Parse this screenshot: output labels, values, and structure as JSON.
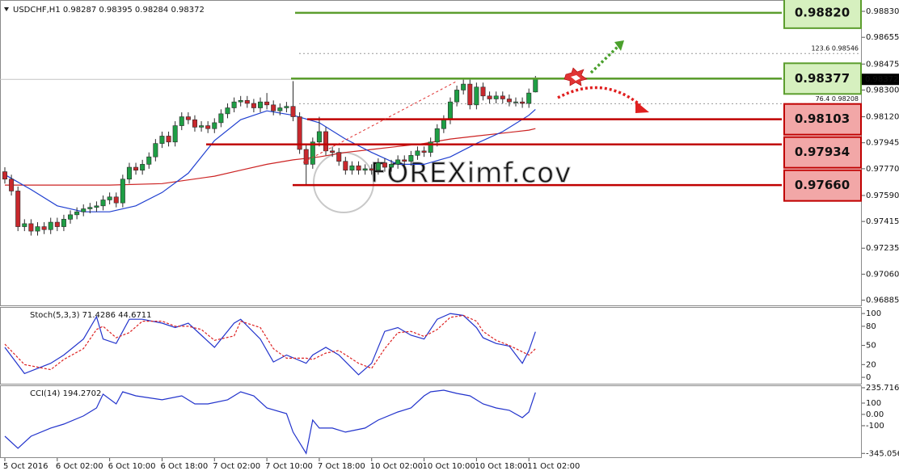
{
  "chart_data": [
    {
      "type": "candlestick",
      "title": "USDCHF,H1  0.98287 0.98395 0.98284 0.98372",
      "up_color": "#1e9e45",
      "down_color": "#c8282d",
      "xlim": [
        -0.74,
        130.7
      ],
      "ylim": [
        0.9685,
        0.9889
      ],
      "xticks": [
        {
          "value": 0,
          "label": "5 Oct 2016"
        },
        {
          "value": 8,
          "label": "6 Oct 02:00"
        },
        {
          "value": 16,
          "label": "6 Oct 10:00"
        },
        {
          "value": 24,
          "label": "6 Oct 18:00"
        },
        {
          "value": 32,
          "label": "7 Oct 02:00"
        },
        {
          "value": 40,
          "label": "7 Oct 10:00"
        },
        {
          "value": 48,
          "label": "7 Oct 18:00"
        },
        {
          "value": 56,
          "label": "10 Oct 02:00"
        },
        {
          "value": 64,
          "label": "10 Oct 10:00"
        },
        {
          "value": 72,
          "label": "10 Oct 18:00"
        },
        {
          "value": 80,
          "label": "11 Oct 02:00"
        }
      ],
      "yticks": [
        {
          "value": 0.9883,
          "label": "0.98830"
        },
        {
          "value": 0.98655,
          "label": "0.98655"
        },
        {
          "value": 0.98475,
          "label": "0.98475"
        },
        {
          "value": 0.983,
          "label": "0.98300"
        },
        {
          "value": 0.9812,
          "label": "0.98120"
        },
        {
          "value": 0.97945,
          "label": "0.97945"
        },
        {
          "value": 0.9777,
          "label": "0.97770"
        },
        {
          "value": 0.9759,
          "label": "0.97590"
        },
        {
          "value": 0.97415,
          "label": "0.97415"
        },
        {
          "value": 0.97235,
          "label": "0.97235"
        },
        {
          "value": 0.9706,
          "label": "0.97060"
        },
        {
          "value": 0.96885,
          "label": "0.96885"
        }
      ],
      "candles": [
        [
          0.9775,
          0.9778,
          0.9767,
          0.977
        ],
        [
          0.977,
          0.9773,
          0.9759,
          0.9762
        ],
        [
          0.9762,
          0.9765,
          0.9735,
          0.9738
        ],
        [
          0.9738,
          0.9743,
          0.9735,
          0.974
        ],
        [
          0.974,
          0.9743,
          0.9732,
          0.9735
        ],
        [
          0.9735,
          0.9741,
          0.9732,
          0.9738
        ],
        [
          0.9738,
          0.9741,
          0.9733,
          0.9736
        ],
        [
          0.9736,
          0.9744,
          0.9733,
          0.9741
        ],
        [
          0.9741,
          0.9744,
          0.9735,
          0.9738
        ],
        [
          0.9738,
          0.9746,
          0.9735,
          0.9743
        ],
        [
          0.9743,
          0.9749,
          0.974,
          0.9746
        ],
        [
          0.9746,
          0.9751,
          0.9743,
          0.9748
        ],
        [
          0.9748,
          0.9753,
          0.9745,
          0.975
        ],
        [
          0.975,
          0.9754,
          0.9747,
          0.9751
        ],
        [
          0.9751,
          0.9755,
          0.9748,
          0.9752
        ],
        [
          0.9752,
          0.9759,
          0.9749,
          0.9756
        ],
        [
          0.9756,
          0.9761,
          0.9753,
          0.9758
        ],
        [
          0.9758,
          0.9761,
          0.9751,
          0.9754
        ],
        [
          0.9754,
          0.9773,
          0.9751,
          0.977
        ],
        [
          0.977,
          0.9781,
          0.9767,
          0.9778
        ],
        [
          0.9778,
          0.9781,
          0.9773,
          0.9776
        ],
        [
          0.9776,
          0.9783,
          0.9773,
          0.978
        ],
        [
          0.978,
          0.9788,
          0.9777,
          0.9785
        ],
        [
          0.9785,
          0.9797,
          0.9782,
          0.9794
        ],
        [
          0.9794,
          0.9802,
          0.9791,
          0.9799
        ],
        [
          0.9799,
          0.9802,
          0.9792,
          0.9795
        ],
        [
          0.9795,
          0.9809,
          0.9792,
          0.9806
        ],
        [
          0.9806,
          0.9815,
          0.9803,
          0.9812
        ],
        [
          0.9812,
          0.9815,
          0.9807,
          0.981
        ],
        [
          0.981,
          0.9813,
          0.9802,
          0.9805
        ],
        [
          0.9805,
          0.9809,
          0.9802,
          0.9806
        ],
        [
          0.9806,
          0.9809,
          0.9801,
          0.9804
        ],
        [
          0.9804,
          0.9811,
          0.9801,
          0.9808
        ],
        [
          0.9808,
          0.9817,
          0.9805,
          0.9814
        ],
        [
          0.9814,
          0.9821,
          0.9811,
          0.9818
        ],
        [
          0.9818,
          0.9825,
          0.9815,
          0.9822
        ],
        [
          0.9822,
          0.9826,
          0.9819,
          0.9823
        ],
        [
          0.9823,
          0.9826,
          0.9818,
          0.9821
        ],
        [
          0.9821,
          0.9824,
          0.9815,
          0.9818
        ],
        [
          0.9818,
          0.9825,
          0.9815,
          0.9822
        ],
        [
          0.9822,
          0.9828,
          0.9817,
          0.982
        ],
        [
          0.982,
          0.9823,
          0.9813,
          0.9816
        ],
        [
          0.9816,
          0.9821,
          0.9813,
          0.9818
        ],
        [
          0.9818,
          0.9822,
          0.9815,
          0.9819
        ],
        [
          0.9819,
          0.9836,
          0.9809,
          0.9812
        ],
        [
          0.9812,
          0.9815,
          0.9787,
          0.979
        ],
        [
          0.979,
          0.9793,
          0.9766,
          0.978
        ],
        [
          0.978,
          0.9798,
          0.9777,
          0.9795
        ],
        [
          0.9795,
          0.9812,
          0.9792,
          0.9802
        ],
        [
          0.9802,
          0.9805,
          0.9786,
          0.9789
        ],
        [
          0.9789,
          0.9792,
          0.9785,
          0.9788
        ],
        [
          0.9788,
          0.9791,
          0.9779,
          0.9782
        ],
        [
          0.9782,
          0.9785,
          0.9773,
          0.9776
        ],
        [
          0.9776,
          0.9782,
          0.9773,
          0.9779
        ],
        [
          0.9779,
          0.9782,
          0.9773,
          0.9776
        ],
        [
          0.9776,
          0.978,
          0.9773,
          0.9777
        ],
        [
          0.9777,
          0.978,
          0.9773,
          0.9776
        ],
        [
          0.9776,
          0.9784,
          0.9773,
          0.9781
        ],
        [
          0.9781,
          0.9784,
          0.9775,
          0.9778
        ],
        [
          0.9778,
          0.9783,
          0.9775,
          0.978
        ],
        [
          0.978,
          0.9786,
          0.9777,
          0.9783
        ],
        [
          0.9783,
          0.9786,
          0.9779,
          0.9782
        ],
        [
          0.9782,
          0.9789,
          0.9779,
          0.9786
        ],
        [
          0.9786,
          0.9792,
          0.9783,
          0.9789
        ],
        [
          0.9789,
          0.9792,
          0.9785,
          0.9788
        ],
        [
          0.9788,
          0.9798,
          0.9785,
          0.9795
        ],
        [
          0.9795,
          0.9807,
          0.9792,
          0.9804
        ],
        [
          0.9804,
          0.9813,
          0.9801,
          0.981
        ],
        [
          0.981,
          0.9825,
          0.9807,
          0.9822
        ],
        [
          0.9822,
          0.9833,
          0.9819,
          0.983
        ],
        [
          0.983,
          0.9837,
          0.9827,
          0.9834
        ],
        [
          0.9834,
          0.9837,
          0.9817,
          0.982
        ],
        [
          0.982,
          0.9835,
          0.9817,
          0.9832
        ],
        [
          0.9832,
          0.9835,
          0.9823,
          0.9826
        ],
        [
          0.9826,
          0.9829,
          0.9821,
          0.9824
        ],
        [
          0.9824,
          0.9829,
          0.9821,
          0.9826
        ],
        [
          0.9826,
          0.9829,
          0.9821,
          0.9824
        ],
        [
          0.9824,
          0.9827,
          0.9819,
          0.9822
        ],
        [
          0.9822,
          0.9825,
          0.9819,
          0.9822
        ],
        [
          0.9822,
          0.9825,
          0.9818,
          0.9821
        ],
        [
          0.9821,
          0.9831,
          0.9818,
          0.9828
        ],
        [
          0.98287,
          0.98395,
          0.98284,
          0.98372
        ]
      ],
      "series": [
        {
          "color": "#cc2222",
          "x": [
            0,
            8,
            16,
            24,
            32,
            36,
            40,
            44,
            48,
            52,
            56,
            60,
            64,
            68,
            72,
            76,
            80,
            81
          ],
          "values": [
            0.9766,
            0.9766,
            0.9766,
            0.9767,
            0.9772,
            0.9776,
            0.978,
            0.9783,
            0.9785,
            0.9788,
            0.979,
            0.9792,
            0.9794,
            0.9797,
            0.9799,
            0.9801,
            0.9803,
            0.9804
          ]
        },
        {
          "color": "#1f3fd0",
          "x": [
            0,
            4,
            8,
            12,
            16,
            20,
            24,
            28,
            32,
            36,
            40,
            44,
            48,
            52,
            56,
            60,
            64,
            68,
            72,
            76,
            80,
            81
          ],
          "values": [
            0.9773,
            0.9763,
            0.9752,
            0.9748,
            0.9748,
            0.9752,
            0.9761,
            0.9774,
            0.9796,
            0.981,
            0.9816,
            0.9813,
            0.9808,
            0.9797,
            0.9788,
            0.978,
            0.978,
            0.9785,
            0.9794,
            0.9802,
            0.9813,
            0.9817
          ]
        }
      ],
      "levels": [
        {
          "value": 0.9882,
          "label": "0.98820",
          "color": "#5c9e2e",
          "fill": "#d6f0bf"
        },
        {
          "value": 0.98377,
          "label": "0.98377",
          "color": "#5c9e2e",
          "fill": "#d6f0bf"
        },
        {
          "value": 0.98103,
          "label": "0.98103",
          "color": "#c00000",
          "fill": "#f2a7a7"
        },
        {
          "value": 0.97934,
          "label": "0.97934",
          "color": "#c00000",
          "fill": "#f2a7a7"
        },
        {
          "value": 0.9766,
          "label": "0.97660",
          "color": "#c00000",
          "fill": "#f2a7a7"
        }
      ],
      "fib": [
        {
          "value": 0.98546,
          "label": "123.6  0.98546"
        },
        {
          "value": 0.98208,
          "label": "76.4  0.98208"
        }
      ],
      "watermark": "FOREXimf.cov"
    },
    {
      "type": "line",
      "title": "Stoch(5,3,3) 71.4286 44.6711",
      "ylim": [
        -10,
        109
      ],
      "yticks": [
        100,
        80,
        50,
        20,
        0
      ],
      "series": [
        {
          "color": "#2233cc",
          "x": [
            0,
            3,
            7,
            9,
            12,
            14,
            15,
            17,
            19,
            21,
            24,
            26,
            28,
            30,
            32,
            35,
            36,
            39,
            41,
            43,
            46,
            47,
            49,
            51,
            54,
            56,
            58,
            60,
            62,
            64,
            66,
            68,
            70,
            72,
            73,
            75,
            77,
            79,
            80,
            81
          ],
          "values": [
            47,
            6,
            22,
            35,
            60,
            95,
            60,
            53,
            91,
            91,
            85,
            78,
            85,
            66,
            47,
            85,
            91,
            60,
            24,
            35,
            22,
            35,
            47,
            35,
            4,
            22,
            72,
            78,
            66,
            60,
            91,
            100,
            97,
            78,
            62,
            53,
            49,
            22,
            42,
            71.43
          ]
        },
        {
          "color": "#dd2222",
          "dashed": true,
          "x": [
            0,
            3,
            7,
            9,
            12,
            14,
            15,
            17,
            19,
            21,
            24,
            26,
            28,
            30,
            32,
            35,
            36,
            39,
            41,
            43,
            46,
            47,
            49,
            51,
            54,
            56,
            58,
            60,
            62,
            64,
            66,
            68,
            70,
            72,
            73,
            75,
            77,
            79,
            80,
            81
          ],
          "values": [
            52,
            20,
            12,
            28,
            45,
            75,
            80,
            62,
            70,
            88,
            88,
            80,
            80,
            75,
            58,
            65,
            88,
            78,
            45,
            30,
            30,
            28,
            38,
            42,
            22,
            14,
            45,
            70,
            72,
            64,
            75,
            94,
            97,
            88,
            72,
            58,
            50,
            40,
            35,
            44.67
          ]
        }
      ]
    },
    {
      "type": "line",
      "title": "CCI(14) 194.2702",
      "ylim": [
        -379,
        250
      ],
      "yticks": [
        235.7163,
        100,
        {
          "value": 0,
          "label": "0.00"
        },
        -100,
        -345.0565
      ],
      "series": [
        {
          "color": "#2233cc",
          "x": [
            0,
            2,
            4,
            7,
            9,
            12,
            14,
            15,
            17,
            18,
            20,
            24,
            27,
            29,
            31,
            34,
            36,
            38,
            40,
            43,
            44,
            46,
            47,
            48,
            50,
            52,
            55,
            57,
            60,
            62,
            64,
            65,
            67,
            69,
            71,
            73,
            75,
            77,
            79,
            80,
            81
          ],
          "values": [
            -193,
            -300,
            -193,
            -121,
            -86,
            -14,
            57,
            179,
            93,
            200,
            164,
            129,
            164,
            93,
            93,
            129,
            200,
            164,
            57,
            7,
            -157,
            -345,
            -50,
            -121,
            -121,
            -157,
            -121,
            -50,
            21,
            57,
            164,
            200,
            214,
            186,
            164,
            93,
            57,
            36,
            -29,
            21,
            194.27
          ]
        }
      ]
    }
  ]
}
